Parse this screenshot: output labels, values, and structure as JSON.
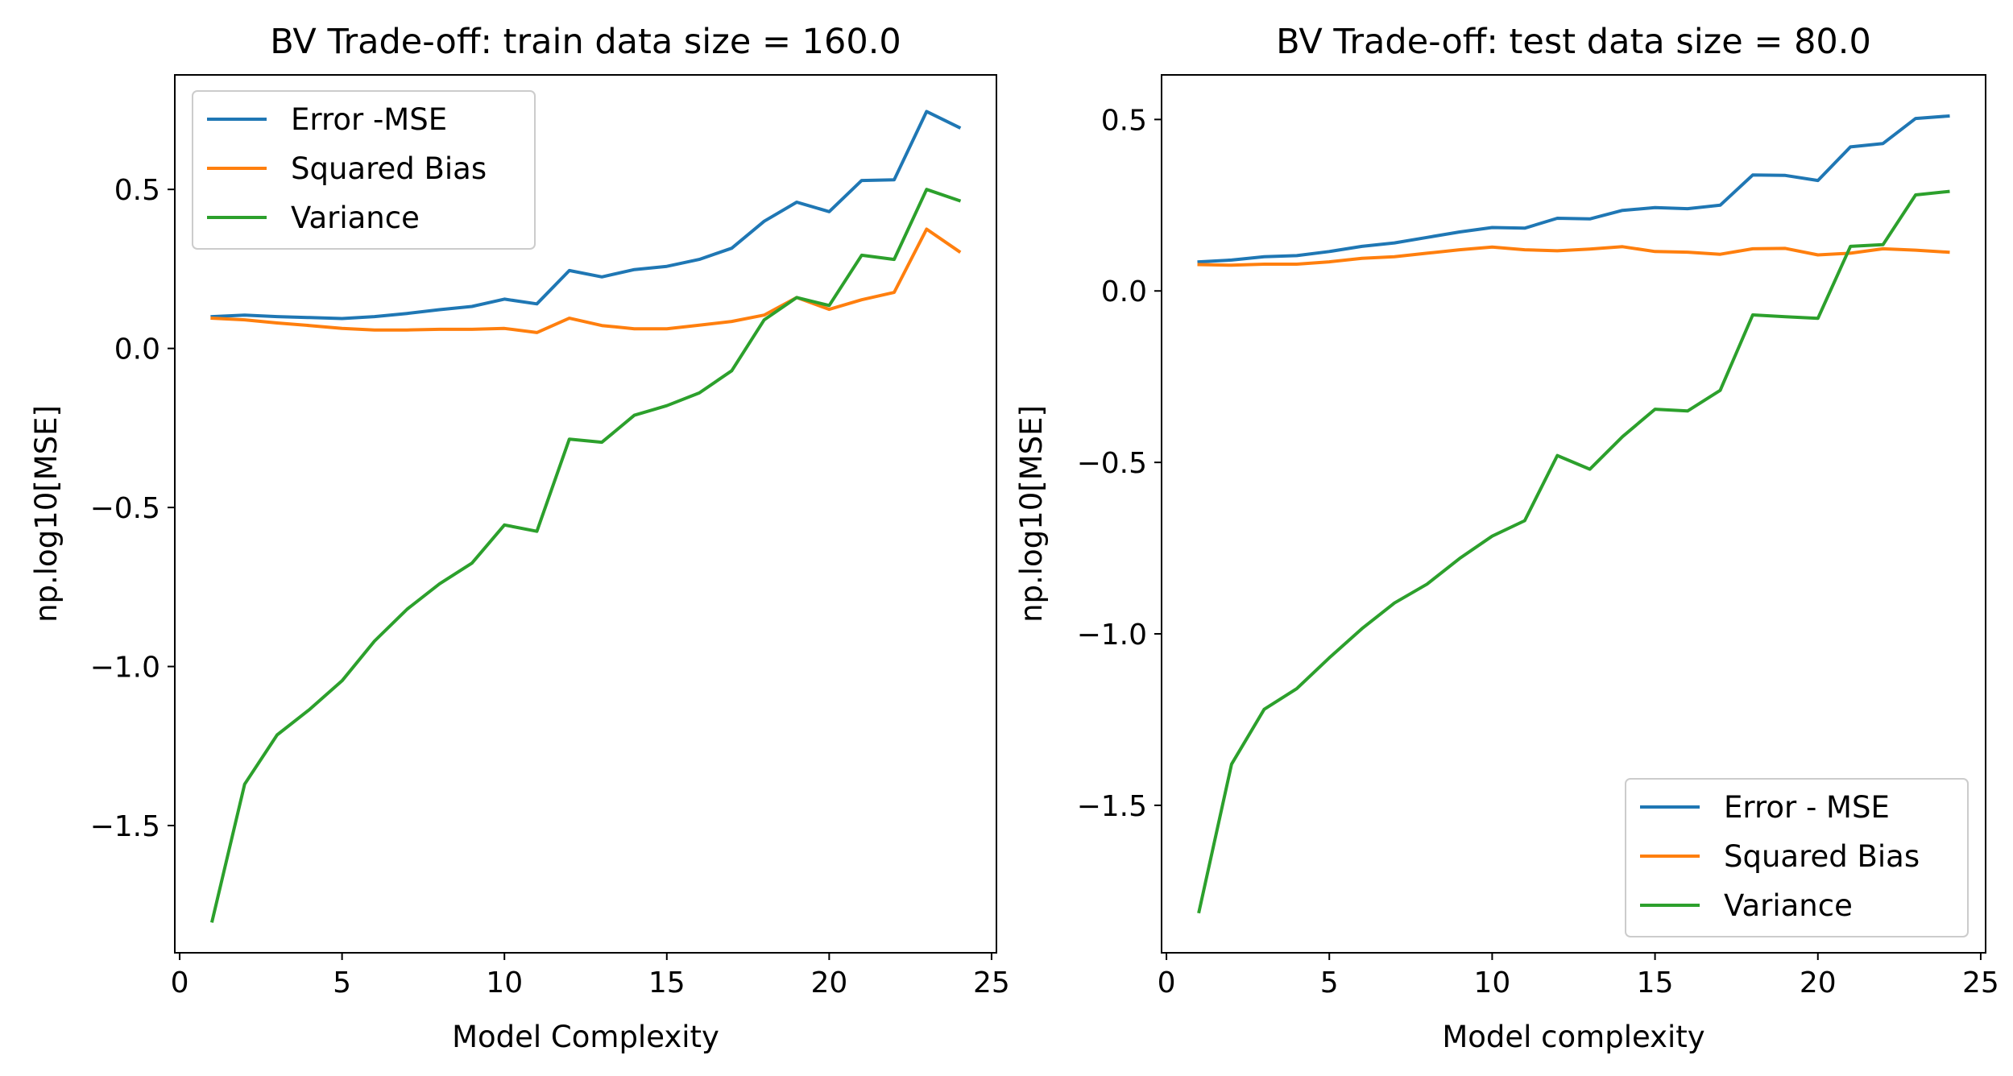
{
  "chart_data": [
    {
      "type": "line",
      "title": "BV Trade-off: train data size = 160.0",
      "xlabel": "Model Complexity",
      "ylabel": "np.log10[MSE]",
      "xlim": [
        -0.15,
        25.15
      ],
      "ylim": [
        -1.9,
        0.86
      ],
      "xticks": [
        0,
        5,
        10,
        15,
        20,
        25
      ],
      "xtick_labels": [
        "0",
        "5",
        "10",
        "15",
        "20",
        "25"
      ],
      "yticks": [
        -1.5,
        -1.0,
        -0.5,
        0.0,
        0.5
      ],
      "ytick_labels": [
        "−1.5",
        "−1.0",
        "−0.5",
        "0.0",
        "0.5"
      ],
      "grid": false,
      "legend_position": "top-left",
      "x": [
        1,
        2,
        3,
        4,
        5,
        6,
        7,
        8,
        9,
        10,
        11,
        12,
        13,
        14,
        15,
        16,
        17,
        18,
        19,
        20,
        21,
        22,
        23,
        24
      ],
      "series": [
        {
          "name": "Error -MSE",
          "color": "#1f77b4",
          "values": [
            0.1,
            0.105,
            0.1,
            0.097,
            0.094,
            0.1,
            0.11,
            0.122,
            0.132,
            0.155,
            0.14,
            0.245,
            0.225,
            0.248,
            0.258,
            0.28,
            0.315,
            0.4,
            0.46,
            0.43,
            0.528,
            0.53,
            0.745,
            0.695
          ]
        },
        {
          "name": "Squared Bias",
          "color": "#ff7f0e",
          "values": [
            0.095,
            0.09,
            0.08,
            0.072,
            0.063,
            0.058,
            0.058,
            0.06,
            0.06,
            0.063,
            0.05,
            0.095,
            0.072,
            0.062,
            0.062,
            0.073,
            0.085,
            0.105,
            0.16,
            0.123,
            0.153,
            0.176,
            0.375,
            0.305
          ]
        },
        {
          "name": "Variance",
          "color": "#2ca02c",
          "values": [
            -1.8,
            -1.37,
            -1.215,
            -1.135,
            -1.045,
            -0.92,
            -0.82,
            -0.74,
            -0.675,
            -0.555,
            -0.575,
            -0.285,
            -0.295,
            -0.21,
            -0.18,
            -0.14,
            -0.07,
            0.09,
            0.16,
            0.135,
            0.293,
            0.28,
            0.5,
            0.465
          ]
        }
      ]
    },
    {
      "type": "line",
      "title": "BV Trade-off: test data size = 80.0",
      "xlabel": "Model complexity",
      "ylabel": "np.log10[MSE]",
      "xlim": [
        -0.15,
        25.15
      ],
      "ylim": [
        -1.93,
        0.63
      ],
      "xticks": [
        0,
        5,
        10,
        15,
        20,
        25
      ],
      "xtick_labels": [
        "0",
        "5",
        "10",
        "15",
        "20",
        "25"
      ],
      "yticks": [
        -1.5,
        -1.0,
        -0.5,
        0.0,
        0.5
      ],
      "ytick_labels": [
        "−1.5",
        "−1.0",
        "−0.5",
        "0.0",
        "0.5"
      ],
      "grid": false,
      "legend_position": "bottom-right",
      "x": [
        1,
        2,
        3,
        4,
        5,
        6,
        7,
        8,
        9,
        10,
        11,
        12,
        13,
        14,
        15,
        16,
        17,
        18,
        19,
        20,
        21,
        22,
        23,
        24
      ],
      "series": [
        {
          "name": "Error - MSE",
          "color": "#1f77b4",
          "values": [
            0.085,
            0.09,
            0.1,
            0.103,
            0.115,
            0.13,
            0.14,
            0.156,
            0.172,
            0.185,
            0.183,
            0.212,
            0.21,
            0.235,
            0.243,
            0.24,
            0.25,
            0.338,
            0.337,
            0.322,
            0.42,
            0.43,
            0.503,
            0.51
          ]
        },
        {
          "name": "Squared Bias",
          "color": "#ff7f0e",
          "values": [
            0.077,
            0.075,
            0.078,
            0.078,
            0.085,
            0.095,
            0.1,
            0.11,
            0.12,
            0.128,
            0.12,
            0.117,
            0.122,
            0.129,
            0.115,
            0.113,
            0.107,
            0.123,
            0.124,
            0.105,
            0.11,
            0.123,
            0.119,
            0.113
          ]
        },
        {
          "name": "Variance",
          "color": "#2ca02c",
          "values": [
            -1.81,
            -1.38,
            -1.22,
            -1.16,
            -1.07,
            -0.985,
            -0.91,
            -0.855,
            -0.78,
            -0.715,
            -0.67,
            -0.48,
            -0.52,
            -0.425,
            -0.345,
            -0.35,
            -0.29,
            -0.07,
            -0.075,
            -0.08,
            0.13,
            0.135,
            0.28,
            0.29
          ]
        }
      ]
    }
  ]
}
